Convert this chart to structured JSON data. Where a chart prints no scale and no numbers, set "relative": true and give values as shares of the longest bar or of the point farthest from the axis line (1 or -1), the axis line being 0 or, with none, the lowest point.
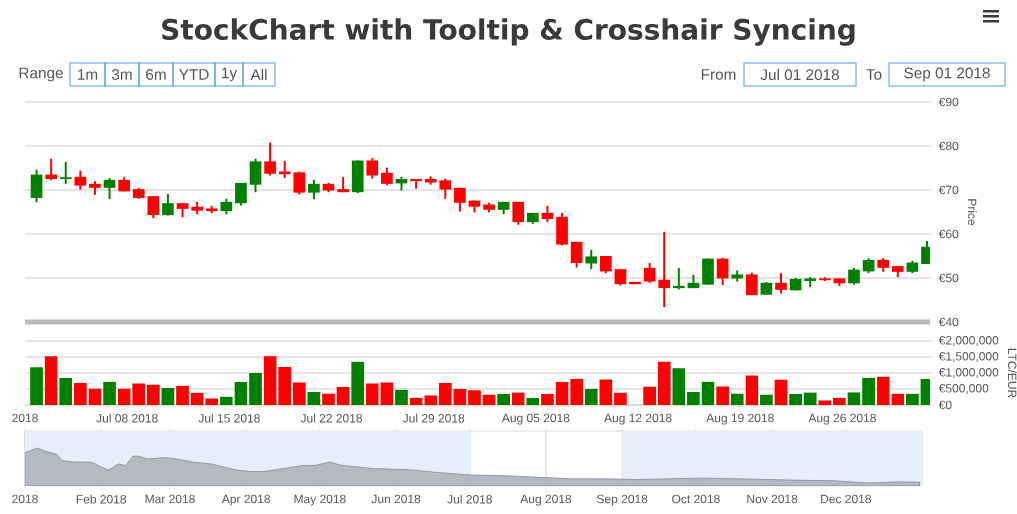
{
  "chart_data": [
    {
      "type": "candlestick",
      "title": "StockChart with Tooltip & Crosshair Syncing",
      "annotations": [
        "Range",
        "1m",
        "3m",
        "6m",
        "YTD",
        "1y",
        "All",
        "From",
        "Jul 01 2018",
        "To",
        "Sep 01 2018"
      ],
      "ylabel": "Price",
      "x": [
        "2018-07-01T19:00",
        "2018-07-02T19:00",
        "2018-07-03T19:00",
        "2018-07-04T19:00",
        "2018-07-05T19:00",
        "2018-07-06T19:00",
        "2018-07-07T19:00",
        "2018-07-08T19:00",
        "2018-07-09T19:00",
        "2018-07-10T19:00",
        "2018-07-11T19:00",
        "2018-07-12T19:00",
        "2018-07-13T19:00",
        "2018-07-14T19:00",
        "2018-07-15T19:00",
        "2018-07-16T19:00",
        "2018-07-17T19:00",
        "2018-07-18T19:00",
        "2018-07-19T19:00",
        "2018-07-20T19:00",
        "2018-07-21T19:00",
        "2018-07-22T19:00",
        "2018-07-23T19:00",
        "2018-07-24T19:00",
        "2018-07-25T19:00",
        "2018-07-26T19:00",
        "2018-07-27T19:00",
        "2018-07-28T19:00",
        "2018-07-29T19:00",
        "2018-07-30T19:00",
        "2018-07-31T19:00",
        "2018-08-01T19:00",
        "2018-08-02T19:00",
        "2018-08-03T19:00",
        "2018-08-04T19:00",
        "2018-08-05T19:00",
        "2018-08-06T19:00",
        "2018-08-07T19:00",
        "2018-08-08T19:00",
        "2018-08-09T19:00",
        "2018-08-10T19:00",
        "2018-08-11T19:00",
        "2018-08-12T19:00",
        "2018-08-13T19:00",
        "2018-08-14T19:00",
        "2018-08-15T19:00",
        "2018-08-16T19:00",
        "2018-08-17T19:00",
        "2018-08-18T19:00",
        "2018-08-19T19:00",
        "2018-08-20T19:00",
        "2018-08-21T19:00",
        "2018-08-22T19:00",
        "2018-08-23T19:00",
        "2018-08-24T19:00",
        "2018-08-25T19:00",
        "2018-08-26T19:00",
        "2018-08-27T19:00",
        "2018-08-28T19:00",
        "2018-08-29T19:00",
        "2018-08-30T19:00",
        "2018-08-31T19:00"
      ],
      "ohlc": [
        [
          68.2,
          74.6,
          67.2,
          73.5
        ],
        [
          73.5,
          77.1,
          72.2,
          72.5
        ],
        [
          72.5,
          76.4,
          71.4,
          72.9
        ],
        [
          73.0,
          74.4,
          70.1,
          71.0
        ],
        [
          71.4,
          72.0,
          68.9,
          70.5
        ],
        [
          70.5,
          72.7,
          67.9,
          72.3
        ],
        [
          72.3,
          72.9,
          69.7,
          69.7
        ],
        [
          70.2,
          70.5,
          68.0,
          68.2
        ],
        [
          68.6,
          68.6,
          63.6,
          64.3
        ],
        [
          64.3,
          69.1,
          64.2,
          67.0
        ],
        [
          67.0,
          67.0,
          63.8,
          65.7
        ],
        [
          66.2,
          67.3,
          64.5,
          65.3
        ],
        [
          65.8,
          66.4,
          64.7,
          65.2
        ],
        [
          65.2,
          68.0,
          64.5,
          67.3
        ],
        [
          67.0,
          71.6,
          66.5,
          71.6
        ],
        [
          71.2,
          77.1,
          69.5,
          76.5
        ],
        [
          76.5,
          80.8,
          73.3,
          73.7
        ],
        [
          74.2,
          76.6,
          72.7,
          73.6
        ],
        [
          74.0,
          74.2,
          69.0,
          69.4
        ],
        [
          69.4,
          72.3,
          67.9,
          71.4
        ],
        [
          71.4,
          71.6,
          69.5,
          69.9
        ],
        [
          70.2,
          72.9,
          69.5,
          69.5
        ],
        [
          69.5,
          76.7,
          69.3,
          76.7
        ],
        [
          76.7,
          77.3,
          72.6,
          73.3
        ],
        [
          73.9,
          75.1,
          71.1,
          71.4
        ],
        [
          71.5,
          73.0,
          69.9,
          72.5
        ],
        [
          72.5,
          72.5,
          70.3,
          72.0
        ],
        [
          72.5,
          73.1,
          71.2,
          71.7
        ],
        [
          72.2,
          72.6,
          68.0,
          70.1
        ],
        [
          70.5,
          70.5,
          65.1,
          67.1
        ],
        [
          67.6,
          67.6,
          64.9,
          66.2
        ],
        [
          66.7,
          67.1,
          64.9,
          65.5
        ],
        [
          65.5,
          67.3,
          64.5,
          67.3
        ],
        [
          67.3,
          67.3,
          62.1,
          62.7
        ],
        [
          62.7,
          64.8,
          62.3,
          64.8
        ],
        [
          64.8,
          66.4,
          62.7,
          63.4
        ],
        [
          63.9,
          64.8,
          57.4,
          57.6
        ],
        [
          58.2,
          58.2,
          52.4,
          53.4
        ],
        [
          53.3,
          56.4,
          52.0,
          54.9
        ],
        [
          55.0,
          55.0,
          51.1,
          51.5
        ],
        [
          52.0,
          52.0,
          48.3,
          48.6
        ],
        [
          49.1,
          49.1,
          48.6,
          48.6
        ],
        [
          52.3,
          53.4,
          48.9,
          49.2
        ],
        [
          49.6,
          60.5,
          43.4,
          47.7
        ],
        [
          47.7,
          52.3,
          47.4,
          48.2
        ],
        [
          47.7,
          50.7,
          47.7,
          48.9
        ],
        [
          48.5,
          54.4,
          48.5,
          54.4
        ],
        [
          54.4,
          54.6,
          48.4,
          49.9
        ],
        [
          49.9,
          51.7,
          49.2,
          50.8
        ],
        [
          50.8,
          51.2,
          46.1,
          46.1
        ],
        [
          46.2,
          49.1,
          46.2,
          48.9
        ],
        [
          48.9,
          51.1,
          46.5,
          47.3
        ],
        [
          47.2,
          50.0,
          47.2,
          49.8
        ],
        [
          49.3,
          50.2,
          47.9,
          49.9
        ],
        [
          49.9,
          50.2,
          49.3,
          49.5
        ],
        [
          49.9,
          49.9,
          48.2,
          48.8
        ],
        [
          48.8,
          52.3,
          48.5,
          51.9
        ],
        [
          51.5,
          54.5,
          51.1,
          54.1
        ],
        [
          54.1,
          54.5,
          51.4,
          52.3
        ],
        [
          52.7,
          52.7,
          50.2,
          51.4
        ],
        [
          51.4,
          53.9,
          51.1,
          53.5
        ],
        [
          53.2,
          58.4,
          53.2,
          57.1
        ]
      ],
      "colors": [
        "#008000",
        "#ff0000",
        "#008000",
        "#ff0000",
        "#ff0000",
        "#008000",
        "#ff0000",
        "#ff0000",
        "#ff0000",
        "#008000",
        "#ff0000",
        "#ff0000",
        "#ff0000",
        "#008000",
        "#008000",
        "#008000",
        "#ff0000",
        "#ff0000",
        "#ff0000",
        "#008000",
        "#ff0000",
        "#ff0000",
        "#008000",
        "#ff0000",
        "#ff0000",
        "#008000",
        "#ff0000",
        "#ff0000",
        "#ff0000",
        "#ff0000",
        "#ff0000",
        "#ff0000",
        "#008000",
        "#ff0000",
        "#008000",
        "#ff0000",
        "#ff0000",
        "#ff0000",
        "#008000",
        "#ff0000",
        "#ff0000",
        "#ff0000",
        "#ff0000",
        "#ff0000",
        "#008000",
        "#008000",
        "#008000",
        "#ff0000",
        "#008000",
        "#ff0000",
        "#008000",
        "#ff0000",
        "#008000",
        "#008000",
        "#ff0000",
        "#ff0000",
        "#008000",
        "#008000",
        "#ff0000",
        "#ff0000",
        "#008000",
        "#008000"
      ],
      "xlim": [
        "2018-07-01",
        "2018-09-01"
      ],
      "ylim": [
        40,
        90
      ],
      "yticks": [
        {
          "value": 40,
          "label": "€40"
        },
        {
          "value": 50,
          "label": "€50"
        },
        {
          "value": 60,
          "label": "€60"
        },
        {
          "value": 70,
          "label": "€70"
        },
        {
          "value": 80,
          "label": "€80"
        },
        {
          "value": 90,
          "label": "€90"
        }
      ],
      "grid": "y",
      "tick_labels": "y"
    },
    {
      "type": "bar",
      "ylabel": "LTC/EUR",
      "x": [
        "2018-07-01T19:00",
        "2018-07-02T19:00",
        "2018-07-03T19:00",
        "2018-07-04T19:00",
        "2018-07-05T19:00",
        "2018-07-06T19:00",
        "2018-07-07T19:00",
        "2018-07-08T19:00",
        "2018-07-09T19:00",
        "2018-07-10T19:00",
        "2018-07-11T19:00",
        "2018-07-12T19:00",
        "2018-07-13T19:00",
        "2018-07-14T19:00",
        "2018-07-15T19:00",
        "2018-07-16T19:00",
        "2018-07-17T19:00",
        "2018-07-18T19:00",
        "2018-07-19T19:00",
        "2018-07-20T19:00",
        "2018-07-21T19:00",
        "2018-07-22T19:00",
        "2018-07-23T19:00",
        "2018-07-24T19:00",
        "2018-07-25T19:00",
        "2018-07-26T19:00",
        "2018-07-27T19:00",
        "2018-07-28T19:00",
        "2018-07-29T19:00",
        "2018-07-30T19:00",
        "2018-07-31T19:00",
        "2018-08-01T19:00",
        "2018-08-02T19:00",
        "2018-08-03T19:00",
        "2018-08-04T19:00",
        "2018-08-05T19:00",
        "2018-08-06T19:00",
        "2018-08-07T19:00",
        "2018-08-08T19:00",
        "2018-08-09T19:00",
        "2018-08-10T19:00",
        "2018-08-11T19:00",
        "2018-08-12T19:00",
        "2018-08-13T19:00",
        "2018-08-14T19:00",
        "2018-08-15T19:00",
        "2018-08-16T19:00",
        "2018-08-17T19:00",
        "2018-08-18T19:00",
        "2018-08-19T19:00",
        "2018-08-20T19:00",
        "2018-08-21T19:00",
        "2018-08-22T19:00",
        "2018-08-23T19:00",
        "2018-08-24T19:00",
        "2018-08-25T19:00",
        "2018-08-26T19:00",
        "2018-08-27T19:00",
        "2018-08-28T19:00",
        "2018-08-29T19:00",
        "2018-08-30T19:00",
        "2018-08-31T19:00"
      ],
      "values": [
        1180000,
        1520000,
        840000,
        690000,
        510000,
        730000,
        510000,
        670000,
        630000,
        530000,
        600000,
        380000,
        200000,
        260000,
        720000,
        1000000,
        1520000,
        1190000,
        700000,
        410000,
        360000,
        560000,
        1350000,
        670000,
        700000,
        480000,
        230000,
        300000,
        690000,
        500000,
        460000,
        320000,
        340000,
        390000,
        220000,
        340000,
        720000,
        820000,
        500000,
        800000,
        380000,
        null,
        570000,
        1350000,
        1150000,
        410000,
        730000,
        580000,
        360000,
        920000,
        320000,
        790000,
        340000,
        390000,
        150000,
        230000,
        400000,
        850000,
        880000,
        350000,
        350000,
        820000
      ],
      "colors": [
        "#008000",
        "#ff0000",
        "#008000",
        "#ff0000",
        "#ff0000",
        "#008000",
        "#ff0000",
        "#ff0000",
        "#ff0000",
        "#008000",
        "#ff0000",
        "#ff0000",
        "#ff0000",
        "#008000",
        "#008000",
        "#008000",
        "#ff0000",
        "#ff0000",
        "#ff0000",
        "#008000",
        "#ff0000",
        "#ff0000",
        "#008000",
        "#ff0000",
        "#ff0000",
        "#008000",
        "#ff0000",
        "#ff0000",
        "#ff0000",
        "#ff0000",
        "#ff0000",
        "#ff0000",
        "#008000",
        "#ff0000",
        "#008000",
        "#ff0000",
        "#ff0000",
        "#ff0000",
        "#008000",
        "#ff0000",
        "#ff0000",
        "#ff0000",
        "#ff0000",
        "#ff0000",
        "#008000",
        "#008000",
        "#008000",
        "#ff0000",
        "#008000",
        "#ff0000",
        "#008000",
        "#ff0000",
        "#008000",
        "#008000",
        "#ff0000",
        "#ff0000",
        "#008000",
        "#008000",
        "#ff0000",
        "#ff0000",
        "#008000",
        "#008000"
      ],
      "xlim": [
        "2018-07-01",
        "2018-09-01"
      ],
      "xticks": [
        {
          "value": "2018-07-01",
          "label": "2018"
        },
        {
          "value": "2018-07-08",
          "label": "Jul 08 2018"
        },
        {
          "value": "2018-07-15",
          "label": "Jul 15 2018"
        },
        {
          "value": "2018-07-22",
          "label": "Jul 22 2018"
        },
        {
          "value": "2018-07-29",
          "label": "Jul 29 2018"
        },
        {
          "value": "2018-08-05",
          "label": "Aug 05 2018"
        },
        {
          "value": "2018-08-12",
          "label": "Aug 12 2018"
        },
        {
          "value": "2018-08-19",
          "label": "Aug 19 2018"
        },
        {
          "value": "2018-08-26",
          "label": "Aug 26 2018"
        }
      ],
      "ylim": [
        0,
        2000000
      ],
      "yticks": [
        {
          "value": 0,
          "label": "€0"
        },
        {
          "value": 500000,
          "label": "€500,000"
        },
        {
          "value": 1000000,
          "label": "€1,000,000"
        },
        {
          "value": 1500000,
          "label": "€1,500,000"
        },
        {
          "value": 2000000,
          "label": "€2,000,000"
        }
      ],
      "grid": "y"
    },
    {
      "type": "area",
      "relative": true,
      "color": "#b4bac4",
      "x": [
        "2018-01-01",
        "2018-01-06",
        "2018-01-09",
        "2018-01-14",
        "2018-01-16",
        "2018-01-21",
        "2018-01-28",
        "2018-02-01",
        "2018-02-04",
        "2018-02-08",
        "2018-02-11",
        "2018-02-14",
        "2018-02-16",
        "2018-02-20",
        "2018-02-27",
        "2018-03-04",
        "2018-03-10",
        "2018-03-18",
        "2018-03-28",
        "2018-04-03",
        "2018-04-08",
        "2018-04-16",
        "2018-04-24",
        "2018-04-29",
        "2018-05-05",
        "2018-05-10",
        "2018-05-23",
        "2018-06-06",
        "2018-06-19",
        "2018-07-01",
        "2018-07-16",
        "2018-08-11",
        "2018-08-25",
        "2018-09-07",
        "2018-10-04",
        "2018-10-17",
        "2018-10-31",
        "2018-11-13",
        "2018-11-26",
        "2018-12-10",
        "2018-12-23",
        "2018-12-31"
      ],
      "values": [
        0.88,
        1.0,
        0.92,
        0.83,
        0.67,
        0.63,
        0.63,
        0.5,
        0.42,
        0.58,
        0.54,
        0.79,
        0.79,
        0.71,
        0.75,
        0.71,
        0.63,
        0.58,
        0.42,
        0.38,
        0.38,
        0.46,
        0.54,
        0.54,
        0.63,
        0.54,
        0.46,
        0.43,
        0.35,
        0.29,
        0.27,
        0.19,
        0.19,
        0.17,
        0.21,
        0.19,
        0.17,
        0.15,
        0.14,
        0.08,
        0.11,
        0.1
      ],
      "xlim": [
        "2018-01-01",
        "2019-01-01"
      ],
      "xticks": [
        {
          "value": "2018-01-01",
          "label": "2018"
        },
        {
          "value": "2018-02-01",
          "label": "Feb 2018"
        },
        {
          "value": "2018-03-01",
          "label": "Mar 2018"
        },
        {
          "value": "2018-04-01",
          "label": "Apr 2018"
        },
        {
          "value": "2018-05-01",
          "label": "May 2018"
        },
        {
          "value": "2018-06-01",
          "label": "Jun 2018"
        },
        {
          "value": "2018-07-01",
          "label": "Jul 2018"
        },
        {
          "value": "2018-08-01",
          "label": "Aug 2018"
        },
        {
          "value": "2018-09-01",
          "label": "Sep 2018"
        },
        {
          "value": "2018-10-01",
          "label": "Oct 2018"
        },
        {
          "value": "2018-11-01",
          "label": "Nov 2018"
        },
        {
          "value": "2018-12-01",
          "label": "Dec 2018"
        }
      ],
      "bands": [
        {
          "axis": "x",
          "from": "2018-01-01",
          "to": "2018-07-01",
          "color": "#e6eefa"
        },
        {
          "axis": "x",
          "from": "2018-09-01",
          "to": "2019-01-01",
          "color": "#e6eefa"
        }
      ],
      "grid": "x"
    }
  ]
}
